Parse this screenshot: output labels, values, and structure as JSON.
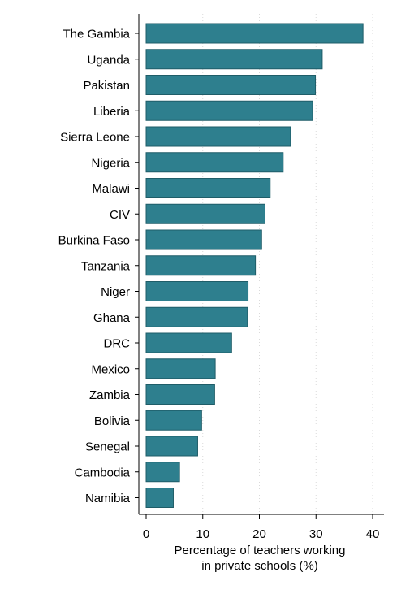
{
  "chart_data": {
    "type": "bar",
    "orientation": "horizontal",
    "categories": [
      "The Gambia",
      "Uganda",
      "Pakistan",
      "Liberia",
      "Sierra Leone",
      "Nigeria",
      "Malawi",
      "CIV",
      "Burkina Faso",
      "Tanzania",
      "Niger",
      "Ghana",
      "DRC",
      "Mexico",
      "Zambia",
      "Bolivia",
      "Senegal",
      "Cambodia",
      "Namibia"
    ],
    "values": [
      38.3,
      31.1,
      29.9,
      29.4,
      25.5,
      24.2,
      21.9,
      21.0,
      20.4,
      19.3,
      18.0,
      17.9,
      15.1,
      12.2,
      12.1,
      9.8,
      9.1,
      5.9,
      4.8
    ],
    "xlabel": [
      "Percentage of teachers working",
      "in private schools (%)"
    ],
    "ylabel": "",
    "xlim": [
      0,
      40
    ],
    "xticks": [
      "0",
      "10",
      "20",
      "30",
      "40"
    ],
    "grid": true,
    "bar_color": "#2e7f8e",
    "bar_edge_color": "#1f5d68",
    "grid_color": "#dadada"
  }
}
